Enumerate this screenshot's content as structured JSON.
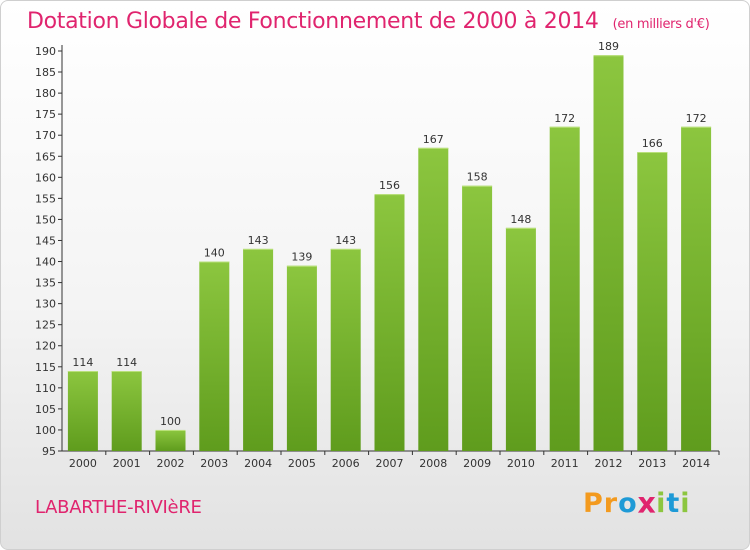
{
  "title": "Dotation Globale de Fonctionnement de 2000 à 2014",
  "subtitle": "(en milliers d'€)",
  "commune": "LABARTHE-RIVIèRE",
  "logo": {
    "letters": [
      "P",
      "r",
      "o",
      "x",
      "i",
      "t",
      "i"
    ],
    "colors": [
      "#f39a1e",
      "#f39a1e",
      "#1e9ad6",
      "#e0246e",
      "#8cc63f",
      "#1e9ad6",
      "#8cc63f"
    ]
  },
  "colors": {
    "bar": "#8cc63f",
    "bar_dark": "#5f9c1d",
    "title": "#e0246e"
  },
  "chart_data": {
    "type": "bar",
    "categories": [
      "2000",
      "2001",
      "2002",
      "2003",
      "2004",
      "2005",
      "2006",
      "2007",
      "2008",
      "2009",
      "2010",
      "2011",
      "2012",
      "2013",
      "2014"
    ],
    "values": [
      114,
      114,
      100,
      140,
      143,
      139,
      143,
      156,
      167,
      158,
      148,
      172,
      189,
      166,
      172
    ],
    "ylim": [
      95,
      190
    ],
    "ytick_step": 5,
    "grid": false
  }
}
